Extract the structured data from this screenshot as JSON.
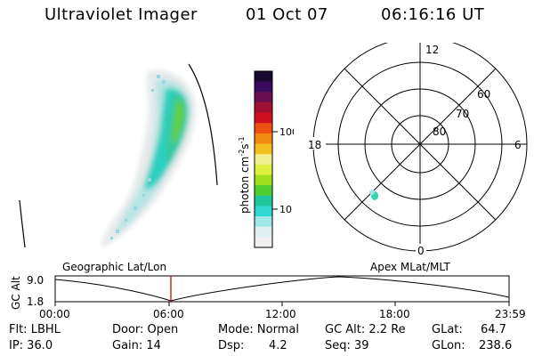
{
  "header": {
    "title": "Ultraviolet Imager",
    "date": "01 Oct 07",
    "time": "06:16:16 UT"
  },
  "colorbar": {
    "label": "photon cm",
    "label_exp1": "-2",
    "label_mid": "s",
    "label_exp2": "-1",
    "ticks": [
      "100",
      "10"
    ],
    "colors": [
      "#1a0a30",
      "#3a0a60",
      "#6a1050",
      "#a01030",
      "#d01020",
      "#ee5010",
      "#f08a10",
      "#f3c020",
      "#f3f090",
      "#e0f040",
      "#a0e020",
      "#50d030",
      "#20c8a0",
      "#30d8d0",
      "#a0e8e8",
      "#e0f0f0",
      "#f0f0f0"
    ]
  },
  "polar": {
    "labels": {
      "top": "12",
      "bottom": "0",
      "left": "18",
      "right": "6",
      "lat60": "60",
      "lat70": "70",
      "lat80": "80"
    }
  },
  "timeline": {
    "title_left": "Geographic Lat/Lon",
    "title_right": "Apex MLat/MLT",
    "yaxis_label": "GC Alt",
    "y_top": "9.0",
    "y_bottom": "1.8",
    "x_ticks": [
      "00:00",
      "06:00",
      "12:00",
      "18:00",
      "23:59"
    ]
  },
  "info": {
    "flt": "Flt: LBHL",
    "ip": "IP: 36.0",
    "door": "Door: Open",
    "gain": "Gain: 14",
    "mode": "Mode: Normal",
    "dsp_label": "Dsp:",
    "dsp_value": "4.2",
    "gcalt": "GC Alt: 2.2 Re",
    "seq": "Seq: 39",
    "glat_label": "GLat:",
    "glat_value": "64.7",
    "glon_label": "GLon:",
    "glon_value": "238.6"
  }
}
